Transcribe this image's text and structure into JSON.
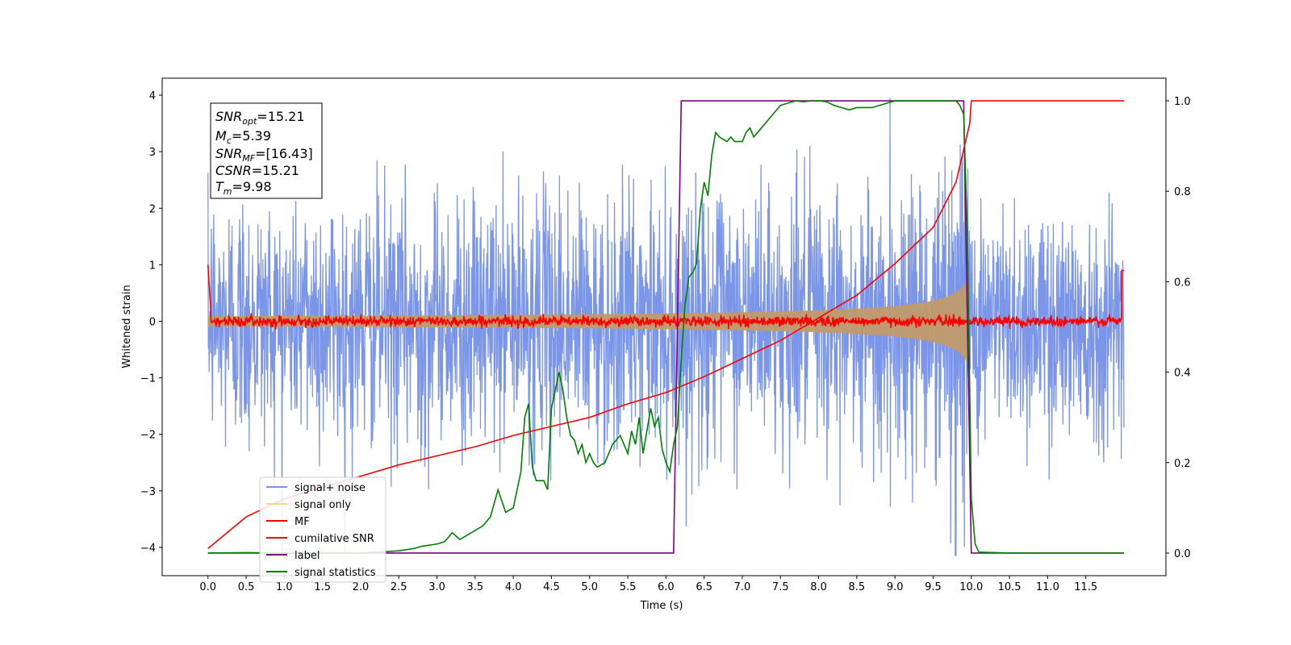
{
  "chart_data": {
    "type": "line",
    "xlabel": "Time (s)",
    "ylabel": "Whitened strain",
    "xlim": [
      -0.6,
      12.55
    ],
    "ylim_left": [
      -4.5,
      4.3
    ],
    "ylim_right": [
      -0.05,
      1.05
    ],
    "x_ticks": [
      "0.0",
      "0.5",
      "1.0",
      "1.5",
      "2.0",
      "2.5",
      "3.0",
      "3.5",
      "4.0",
      "4.5",
      "5.0",
      "5.5",
      "6.0",
      "6.5",
      "7.0",
      "7.5",
      "8.0",
      "8.5",
      "9.0",
      "9.5",
      "10.0",
      "10.5",
      "11.0",
      "11.5"
    ],
    "y_ticks_left": [
      "4",
      "3",
      "2",
      "1",
      "0",
      "−1",
      "−2",
      "−3",
      "−4"
    ],
    "y_ticks_right": [
      "1.0",
      "0.8",
      "0.6",
      "0.4",
      "0.2",
      "0.0"
    ],
    "grid": false,
    "legend_position": "lower-left",
    "info_box": {
      "snr_opt": {
        "base": "SNR",
        "sub": "opt",
        "value": "=15.21"
      },
      "mc": {
        "base": "M",
        "sub": "c",
        "value": "=5.39"
      },
      "snr_mf": {
        "base": "SNR",
        "sub": "MF",
        "value": "=[16.43]"
      },
      "csnr": {
        "base": "CSNR",
        "sub": "",
        "value": "=15.21"
      },
      "tm": {
        "base": "T",
        "sub": "m",
        "value": "=9.98"
      }
    },
    "series": [
      {
        "name": "signal+ noise",
        "color": "#7b96e8",
        "axis": "left",
        "x_range": [
          0.0,
          12.0
        ],
        "noise_std": 1.05
      },
      {
        "name": "signal only",
        "color": "#ffd580",
        "axis": "left",
        "x_range": [
          0.0,
          10.0
        ],
        "chirp_merger_time": 9.98
      },
      {
        "name": "MF",
        "color": "#ff0000",
        "axis": "left",
        "x_range": [
          0.0,
          12.0
        ],
        "level": 0.0
      },
      {
        "name": "cumilative SNR",
        "color": "#ff0000",
        "axis": "right",
        "x": [
          0.0,
          0.5,
          1.0,
          1.5,
          2.0,
          2.5,
          3.0,
          3.5,
          4.0,
          4.5,
          5.0,
          5.5,
          6.0,
          6.5,
          7.0,
          7.5,
          8.0,
          8.5,
          9.0,
          9.5,
          9.8,
          9.98,
          10.0,
          12.0
        ],
        "y": [
          0.01,
          0.08,
          0.12,
          0.145,
          0.17,
          0.195,
          0.215,
          0.235,
          0.26,
          0.28,
          0.3,
          0.33,
          0.355,
          0.39,
          0.43,
          0.47,
          0.52,
          0.57,
          0.64,
          0.72,
          0.82,
          0.95,
          1.0,
          1.0
        ]
      },
      {
        "name": "label",
        "color": "#800080",
        "axis": "right",
        "x": [
          0.0,
          6.1,
          6.2,
          9.9,
          10.0,
          12.0
        ],
        "y": [
          0.0,
          0.0,
          1.0,
          1.0,
          0.0,
          0.0
        ]
      },
      {
        "name": "signal statistics",
        "color": "#008000",
        "axis": "right",
        "x": [
          0.0,
          0.5,
          1.0,
          1.5,
          2.0,
          2.5,
          2.7,
          2.8,
          3.0,
          3.1,
          3.2,
          3.3,
          3.5,
          3.6,
          3.7,
          3.8,
          3.9,
          4.0,
          4.1,
          4.15,
          4.2,
          4.25,
          4.3,
          4.4,
          4.45,
          4.5,
          4.55,
          4.6,
          4.65,
          4.7,
          4.75,
          4.8,
          4.85,
          4.9,
          4.95,
          5.0,
          5.05,
          5.1,
          5.2,
          5.3,
          5.4,
          5.5,
          5.55,
          5.6,
          5.65,
          5.7,
          5.75,
          5.8,
          5.85,
          5.9,
          5.95,
          6.0,
          6.05,
          6.1,
          6.15,
          6.2,
          6.25,
          6.3,
          6.35,
          6.4,
          6.45,
          6.5,
          6.55,
          6.6,
          6.65,
          6.7,
          6.8,
          6.85,
          6.9,
          7.0,
          7.05,
          7.1,
          7.15,
          7.2,
          7.3,
          7.4,
          7.5,
          7.6,
          7.7,
          7.8,
          7.9,
          8.0,
          8.1,
          8.2,
          8.3,
          8.4,
          8.5,
          8.6,
          8.7,
          8.8,
          9.0,
          9.2,
          9.4,
          9.6,
          9.8,
          9.85,
          9.9,
          9.95,
          10.0,
          10.05,
          10.1,
          10.5,
          11.0,
          12.0
        ],
        "y": [
          0.0,
          0.001,
          0.0,
          0.001,
          0.0,
          0.005,
          0.01,
          0.015,
          0.02,
          0.025,
          0.045,
          0.03,
          0.05,
          0.06,
          0.08,
          0.14,
          0.09,
          0.1,
          0.18,
          0.3,
          0.33,
          0.19,
          0.16,
          0.16,
          0.14,
          0.32,
          0.36,
          0.4,
          0.36,
          0.3,
          0.26,
          0.25,
          0.22,
          0.24,
          0.2,
          0.22,
          0.2,
          0.19,
          0.2,
          0.24,
          0.26,
          0.22,
          0.27,
          0.24,
          0.3,
          0.22,
          0.27,
          0.32,
          0.28,
          0.3,
          0.23,
          0.2,
          0.18,
          0.24,
          0.28,
          0.43,
          0.55,
          0.61,
          0.62,
          0.64,
          0.76,
          0.82,
          0.79,
          0.88,
          0.93,
          0.92,
          0.91,
          0.92,
          0.91,
          0.91,
          0.93,
          0.94,
          0.92,
          0.93,
          0.95,
          0.97,
          0.99,
          0.995,
          1.0,
          0.998,
          1.0,
          1.0,
          0.998,
          0.99,
          0.985,
          0.98,
          0.985,
          0.985,
          0.985,
          0.99,
          1.0,
          1.0,
          1.0,
          1.0,
          1.0,
          0.99,
          0.97,
          0.7,
          0.12,
          0.02,
          0.002,
          0.0,
          0.0,
          0.0
        ]
      }
    ]
  }
}
